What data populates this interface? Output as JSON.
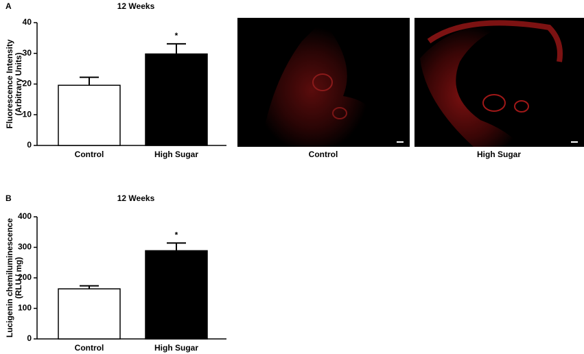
{
  "panels": [
    "A",
    "B"
  ],
  "images": [
    {
      "caption": "Control"
    },
    {
      "caption": "High Sugar"
    }
  ],
  "chart_data": [
    {
      "type": "bar",
      "title": "12 Weeks",
      "ylabel": [
        "Fluorescence Intensity",
        "(Arbitrary Units)"
      ],
      "categories": [
        "Control",
        "High Sugar"
      ],
      "values": [
        19.6,
        29.8
      ],
      "errors": [
        2.6,
        3.3
      ],
      "colors": [
        "#ffffff",
        "#000000"
      ],
      "annotations": [
        {
          "text": "*",
          "index": 1
        }
      ],
      "ylim": [
        0,
        40
      ],
      "yticks": [
        0,
        10,
        20,
        30,
        40
      ]
    },
    {
      "type": "bar",
      "title": "12 Weeks",
      "ylabel": [
        "Lucigenin chemiluminescence",
        "(RLU / mg)"
      ],
      "categories": [
        "Control",
        "High Sugar"
      ],
      "values": [
        164,
        289
      ],
      "errors": [
        10,
        25
      ],
      "colors": [
        "#ffffff",
        "#000000"
      ],
      "annotations": [
        {
          "text": "*",
          "index": 1
        }
      ],
      "ylim": [
        0,
        400
      ],
      "yticks": [
        0,
        100,
        200,
        300,
        400
      ]
    }
  ]
}
